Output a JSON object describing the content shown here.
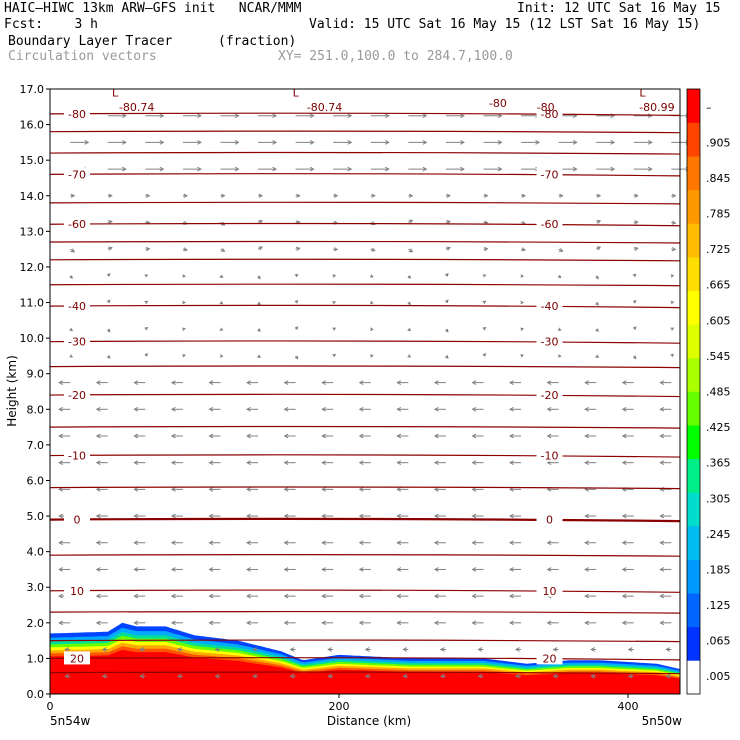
{
  "header": {
    "left1": "HAIC–HIWC 13km ARW–GFS init   NCAR/MMM",
    "left2": "Fcst:    3 h",
    "right1": "Init: 12 UTC Sat 16 May 15",
    "right2": "Valid: 15 UTC Sat 16 May 15 (12 LST Sat 16 May 15)",
    "field": "Boundary Layer Tracer",
    "units": "(fraction)",
    "vectors": "Circulation vectors",
    "xy": "XY= 251.0,100.0 to 284.7,100.0"
  },
  "colors": {
    "contour": "#8b0000",
    "vector": "#808080",
    "scale": [
      "#ffffff",
      "#0033ff",
      "#0066ff",
      "#0099ff",
      "#00bbee",
      "#00ddcc",
      "#00ee88",
      "#00ff00",
      "#66ff00",
      "#aaff00",
      "#ddff00",
      "#ffff00",
      "#ffdd00",
      "#ffbb00",
      "#ff9900",
      "#ff7700",
      "#ff4400",
      "#ff0000"
    ]
  },
  "chart_data": {
    "type": "heatmap",
    "xlabel": "Distance (km)",
    "ylabel": "Height (km)",
    "xlim": [
      0,
      436
    ],
    "ylim": [
      0,
      17
    ],
    "xticks": [
      "0",
      "200",
      "400"
    ],
    "xtick_values": [
      0,
      200,
      400
    ],
    "yticks": [
      "0.0",
      "1.0",
      "2.0",
      "3.0",
      "4.0",
      "5.0",
      "6.0",
      "7.0",
      "8.0",
      "9.0",
      "10.0",
      "11.0",
      "12.0",
      "13.0",
      "14.0",
      "15.0",
      "16.0",
      "17.0"
    ],
    "x_end_labels": {
      "left": "5n54w",
      "right": "5n50w"
    },
    "colorbar_labels": [
      ".005",
      ".065",
      ".125",
      ".185",
      ".245",
      ".305",
      ".365",
      ".425",
      ".485",
      ".545",
      ".605",
      ".665",
      ".725",
      ".785",
      ".845",
      ".905",
      "–"
    ],
    "tracer_top_km": [
      {
        "x": 0,
        "top": 1.7
      },
      {
        "x": 40,
        "top": 1.75
      },
      {
        "x": 50,
        "top": 2.0
      },
      {
        "x": 60,
        "top": 1.9
      },
      {
        "x": 80,
        "top": 1.9
      },
      {
        "x": 100,
        "top": 1.65
      },
      {
        "x": 130,
        "top": 1.5
      },
      {
        "x": 160,
        "top": 1.2
      },
      {
        "x": 175,
        "top": 0.95
      },
      {
        "x": 200,
        "top": 1.1
      },
      {
        "x": 250,
        "top": 1.0
      },
      {
        "x": 300,
        "top": 1.0
      },
      {
        "x": 330,
        "top": 0.85
      },
      {
        "x": 360,
        "top": 0.95
      },
      {
        "x": 380,
        "top": 0.95
      },
      {
        "x": 420,
        "top": 0.85
      },
      {
        "x": 436,
        "top": 0.7
      }
    ],
    "temperature_contours": [
      {
        "label": "-80",
        "height_km": 16.3
      },
      {
        "label": "-70",
        "height_km": 14.6
      },
      {
        "label": "-60",
        "height_km": 13.2
      },
      {
        "label": "-40",
        "height_km": 10.9
      },
      {
        "label": "-30",
        "height_km": 9.9
      },
      {
        "label": "-20",
        "height_km": 8.4
      },
      {
        "label": "-10",
        "height_km": 6.7
      },
      {
        "label": "0",
        "height_km": 4.9
      },
      {
        "label": "10",
        "height_km": 2.9
      },
      {
        "label": "20",
        "height_km": 1.0
      }
    ],
    "annotations": [
      {
        "text": "-80.74",
        "x": 60,
        "y": 16.5
      },
      {
        "text": "-80.74",
        "x": 190,
        "y": 16.5
      },
      {
        "text": "-80",
        "x": 310,
        "y": 16.6
      },
      {
        "text": "-80",
        "x": 343,
        "y": 16.5
      },
      {
        "text": "-80.99",
        "x": 420,
        "y": 16.5
      },
      {
        "text": "L",
        "x": 45,
        "y": 16.9
      },
      {
        "text": "L",
        "x": 170,
        "y": 16.9
      },
      {
        "text": "L",
        "x": 410,
        "y": 16.9
      }
    ]
  }
}
